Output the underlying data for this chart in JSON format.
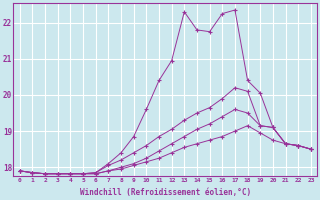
{
  "background_color": "#cce8ee",
  "grid_color": "#ffffff",
  "line_color": "#993399",
  "marker": "+",
  "xlim": [
    -0.5,
    23.5
  ],
  "ylim": [
    17.75,
    22.55
  ],
  "xticks": [
    0,
    1,
    2,
    3,
    4,
    5,
    6,
    7,
    8,
    9,
    10,
    11,
    12,
    13,
    14,
    15,
    16,
    17,
    18,
    19,
    20,
    21,
    22,
    23
  ],
  "yticks": [
    18,
    19,
    20,
    21,
    22
  ],
  "xlabel": "Windchill (Refroidissement éolien,°C)",
  "series": [
    [
      17.9,
      17.85,
      17.82,
      17.82,
      17.82,
      17.82,
      17.82,
      17.9,
      17.95,
      18.05,
      18.15,
      18.25,
      18.4,
      18.55,
      18.65,
      18.75,
      18.85,
      19.0,
      19.15,
      18.95,
      18.75,
      18.65,
      18.6,
      18.5
    ],
    [
      17.9,
      17.85,
      17.82,
      17.82,
      17.82,
      17.82,
      17.82,
      17.9,
      18.0,
      18.1,
      18.25,
      18.45,
      18.65,
      18.85,
      19.05,
      19.2,
      19.4,
      19.6,
      19.5,
      19.15,
      19.1,
      18.65,
      18.6,
      18.5
    ],
    [
      17.9,
      17.85,
      17.82,
      17.82,
      17.82,
      17.82,
      17.85,
      18.1,
      18.4,
      18.85,
      19.6,
      20.4,
      20.95,
      22.3,
      21.8,
      21.75,
      22.25,
      22.35,
      20.4,
      20.05,
      19.1,
      18.65,
      18.6,
      18.5
    ],
    [
      17.9,
      17.85,
      17.82,
      17.82,
      17.82,
      17.82,
      17.85,
      18.05,
      18.2,
      18.4,
      18.6,
      18.85,
      19.05,
      19.3,
      19.5,
      19.65,
      19.9,
      20.2,
      20.1,
      19.15,
      19.1,
      18.65,
      18.6,
      18.5
    ]
  ]
}
